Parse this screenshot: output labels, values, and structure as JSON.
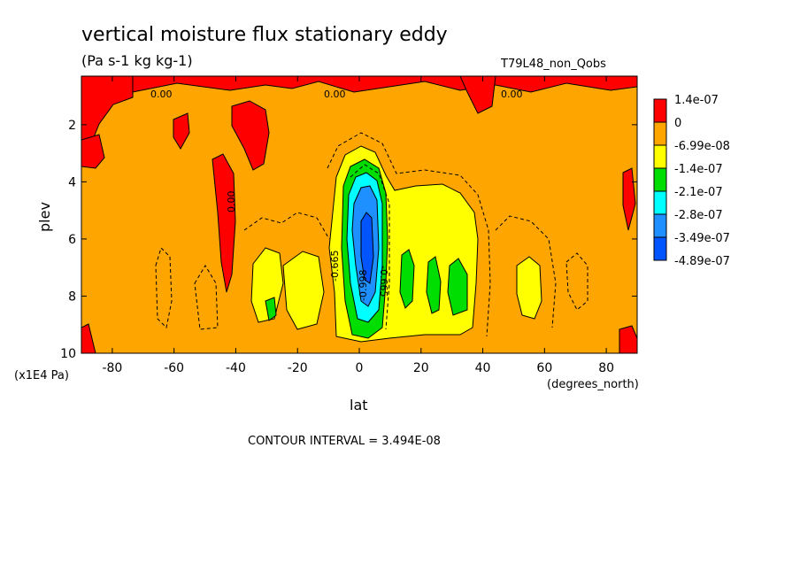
{
  "chart_data": {
    "type": "heatmap",
    "title": "vertical moisture flux stationary eddy",
    "units": "(Pa s-1 kg kg-1)",
    "run_label": "T79L48_non_Qobs",
    "xlabel": "lat",
    "x_units": "(degrees_north)",
    "ylabel": "plev",
    "y_units": "(x1E4 Pa)",
    "xlim": [
      -90,
      90
    ],
    "ylim": [
      10,
      0.3
    ],
    "x_ticks": [
      -80,
      -60,
      -40,
      -20,
      0,
      20,
      40,
      60,
      80
    ],
    "y_ticks": [
      2,
      4,
      6,
      8,
      10
    ],
    "colorbar": {
      "colors": [
        "#ff0000",
        "#ffa500",
        "#ffff00",
        "#00dd00",
        "#00ffff",
        "#1e90ff",
        "#0055ff"
      ],
      "labels": [
        "1.4e-07",
        "0",
        "-6.99e-08",
        "-1.4e-07",
        "-2.1e-07",
        "-2.8e-07",
        "-3.49e-07",
        "-4.89e-07"
      ]
    },
    "contour_interval_label": "CONTOUR INTERVAL = 3.494E-08",
    "contour_labels": [
      {
        "text": "0.00",
        "lat": -65,
        "plev": 0.9
      },
      {
        "text": "0.00",
        "lat": -7,
        "plev": 0.9
      },
      {
        "text": "0.00",
        "lat": 50,
        "plev": 0.9
      },
      {
        "text": "0.00",
        "lat": -42,
        "plev": 4.5
      },
      {
        "text": "-0.665",
        "lat": -7.5,
        "plev": 6.8
      },
      {
        "text": "-0.665",
        "lat": 9,
        "plev": 6.2
      },
      {
        "text": "-0.998",
        "lat": 4,
        "plev": 7.8
      }
    ],
    "features": [
      {
        "name": "tropical-max-core",
        "lat": 0.5,
        "plev": 6.0,
        "value": -4.89e-07
      },
      {
        "name": "tropical-band",
        "lat": 0,
        "plev": 6.0,
        "value": -2.8e-07
      },
      {
        "name": "subtropical-north-cells",
        "lat": 25,
        "plev": 7.0,
        "value": -1.4e-07
      },
      {
        "name": "south-midlat-cells",
        "lat": -25,
        "plev": 7.5,
        "value": -7e-08
      },
      {
        "name": "positive-strip-south",
        "lat": -41,
        "plev": 5.0,
        "value": 1.4e-07
      },
      {
        "name": "positive-top-band",
        "lat": 0,
        "plev": 0.6,
        "value": 1.4e-07
      }
    ]
  }
}
